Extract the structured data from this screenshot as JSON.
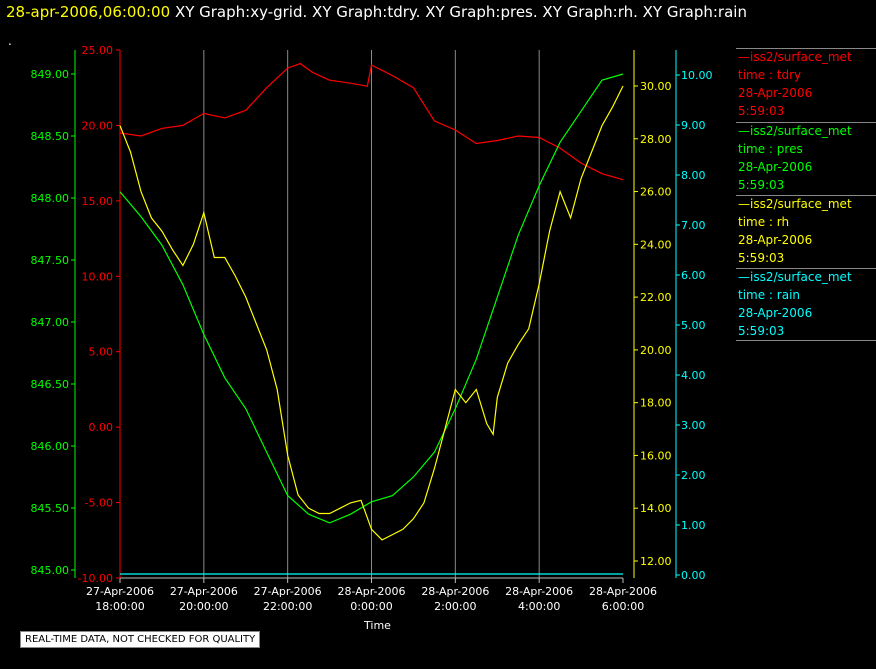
{
  "header": {
    "timestamp": "28-apr-2006,06:00:00",
    "graphs": [
      "XY Graph:xy-grid.",
      "XY Graph:tdry.",
      "XY Graph:pres.",
      "XY Graph:rh.",
      "XY Graph:rain"
    ],
    "dot": "."
  },
  "note": "REAL-TIME DATA, NOT CHECKED FOR QUALITY",
  "legend": [
    {
      "line1": "iss2/surface_met",
      "line2": "time : tdry",
      "line3": "28-Apr-2006",
      "line4": "5:59:03",
      "color": "#ff0000"
    },
    {
      "line1": "iss2/surface_met",
      "line2": "time : pres",
      "line3": "28-Apr-2006",
      "line4": "5:59:03",
      "color": "#00ff00"
    },
    {
      "line1": "iss2/surface_met",
      "line2": "time : rh",
      "line3": "28-Apr-2006",
      "line4": "5:59:03",
      "color": "#ffff00"
    },
    {
      "line1": "iss2/surface_met",
      "line2": "time : rain",
      "line3": "28-Apr-2006",
      "line4": "5:59:03",
      "color": "#00ffff"
    }
  ],
  "chart_data": {
    "type": "line",
    "xlabel": "Time",
    "x_ticks": [
      {
        "d": "27-Apr-2006",
        "t": "18:00:00",
        "h": 18
      },
      {
        "d": "27-Apr-2006",
        "t": "20:00:00",
        "h": 20
      },
      {
        "d": "27-Apr-2006",
        "t": "22:00:00",
        "h": 22
      },
      {
        "d": "28-Apr-2006",
        "t": "0:00:00",
        "h": 24
      },
      {
        "d": "28-Apr-2006",
        "t": "2:00:00",
        "h": 26
      },
      {
        "d": "28-Apr-2006",
        "t": "4:00:00",
        "h": 28
      },
      {
        "d": "28-Apr-2006",
        "t": "6:00:00",
        "h": 30
      }
    ],
    "x_unit": "hours since 27-Apr-2006 0:00",
    "xlim": [
      18,
      30
    ],
    "grid": "vertical",
    "axes": {
      "tdry": {
        "color": "#ff0000",
        "ylim": [
          -10,
          25
        ],
        "ticks": [
          "25.00",
          "20.00",
          "15.00",
          "10.00",
          "5.00",
          "0.00",
          "-5.00",
          "-10.00"
        ]
      },
      "pres": {
        "color": "#00ff00",
        "ylim": [
          845,
          849.2
        ],
        "ticks": [
          "849.00",
          "848.50",
          "848.00",
          "847.50",
          "847.00",
          "846.50",
          "846.00",
          "845.50",
          "845.00"
        ]
      },
      "rh": {
        "color": "#ffff00",
        "ylim": [
          11.5,
          30.8
        ],
        "ticks": [
          "30.00",
          "28.00",
          "26.00",
          "24.00",
          "22.00",
          "20.00",
          "18.00",
          "16.00",
          "14.00",
          "12.00"
        ]
      },
      "rain": {
        "color": "#00ffff",
        "ylim": [
          0,
          10.3
        ],
        "ticks": [
          "10.00",
          "9.00",
          "8.00",
          "7.00",
          "6.00",
          "5.00",
          "4.00",
          "3.00",
          "2.00",
          "1.00",
          "0.00"
        ]
      }
    },
    "series": [
      {
        "name": "tdry",
        "x": [
          18.0,
          18.5,
          19.0,
          19.5,
          20.0,
          20.5,
          21.0,
          21.5,
          22.0,
          22.3,
          22.6,
          23.0,
          23.5,
          23.9,
          24.0,
          24.5,
          25.0,
          25.5,
          26.0,
          26.5,
          27.0,
          27.5,
          28.0,
          28.5,
          29.0,
          29.5,
          30.0
        ],
        "y": [
          19.5,
          19.3,
          19.8,
          20.0,
          20.8,
          20.5,
          21.0,
          22.5,
          23.8,
          24.1,
          23.5,
          23.0,
          22.8,
          22.6,
          24.0,
          23.3,
          22.5,
          20.3,
          19.7,
          18.8,
          19.0,
          19.3,
          19.2,
          18.5,
          17.5,
          16.8,
          16.4
        ]
      },
      {
        "name": "pres",
        "x": [
          18.0,
          18.5,
          19.0,
          19.5,
          20.0,
          20.5,
          21.0,
          21.5,
          22.0,
          22.5,
          23.0,
          23.5,
          24.0,
          24.5,
          25.0,
          25.5,
          26.0,
          26.5,
          27.0,
          27.5,
          28.0,
          28.5,
          29.0,
          29.5,
          30.0
        ],
        "y": [
          848.05,
          847.85,
          847.62,
          847.3,
          846.9,
          846.55,
          846.3,
          845.95,
          845.6,
          845.45,
          845.38,
          845.45,
          845.55,
          845.6,
          845.75,
          845.95,
          846.3,
          846.7,
          847.2,
          847.7,
          848.1,
          848.45,
          848.7,
          848.95,
          849.0
        ]
      },
      {
        "name": "rh",
        "x": [
          18.0,
          18.25,
          18.5,
          18.75,
          19.0,
          19.25,
          19.5,
          19.75,
          20.0,
          20.25,
          20.5,
          20.75,
          21.0,
          21.25,
          21.5,
          21.75,
          22.0,
          22.25,
          22.5,
          22.75,
          23.0,
          23.25,
          23.5,
          23.75,
          24.0,
          24.25,
          24.5,
          24.75,
          25.0,
          25.25,
          25.5,
          25.75,
          26.0,
          26.25,
          26.5,
          26.75,
          26.9,
          27.0,
          27.25,
          27.5,
          27.75,
          28.0,
          28.25,
          28.5,
          28.75,
          29.0,
          29.25,
          29.5,
          29.75,
          30.0
        ],
        "y": [
          28.5,
          27.5,
          26.0,
          25.0,
          24.5,
          23.8,
          23.2,
          24.0,
          25.2,
          23.5,
          23.5,
          22.8,
          22.0,
          21.0,
          20.0,
          18.5,
          16.0,
          14.5,
          14.0,
          13.8,
          13.8,
          14.0,
          14.2,
          14.3,
          13.2,
          12.8,
          13.0,
          13.2,
          13.6,
          14.2,
          15.5,
          17.0,
          18.5,
          18.0,
          18.5,
          17.2,
          16.8,
          18.2,
          19.5,
          20.2,
          20.8,
          22.5,
          24.5,
          26.0,
          25.0,
          26.5,
          27.5,
          28.5,
          29.2,
          30.0
        ]
      },
      {
        "name": "rain",
        "x": [
          18.0,
          30.0
        ],
        "y": [
          0.02,
          0.02
        ]
      }
    ]
  }
}
